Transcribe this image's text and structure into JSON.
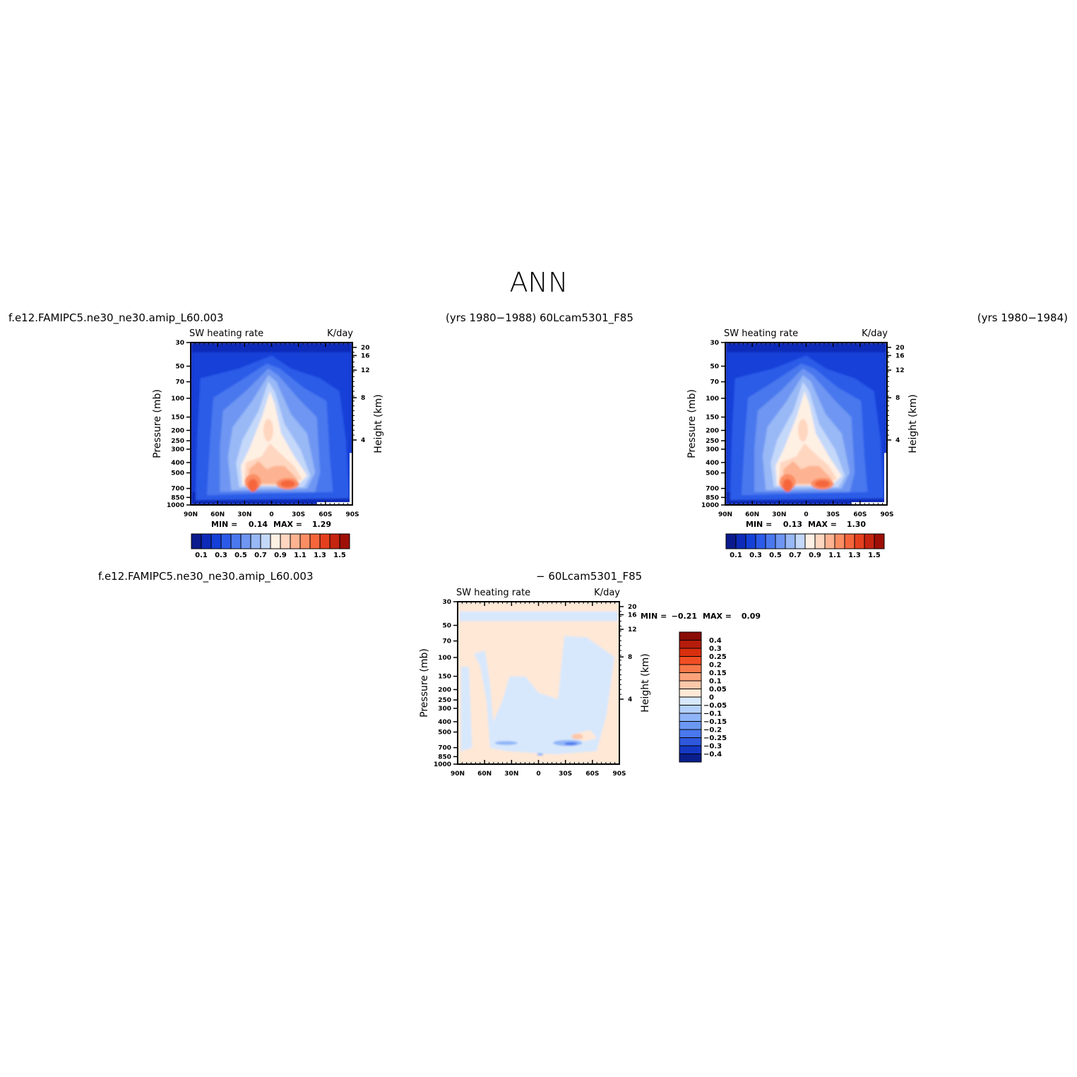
{
  "figure": {
    "title": "ANN",
    "header_left": "f.e12.FAMIPC5.ne30_ne30.amip_L60.003",
    "header_mid": "(yrs 1980−1988)  60Lcam5301_F85",
    "header_right": "(yrs 1980−1984)",
    "diff_left": "f.e12.FAMIPC5.ne30_ne30.amip_L60.003",
    "diff_right": "− 60Lcam5301_F85"
  },
  "colors": {
    "positive": [
      "#ffe8d6",
      "#ffd0b3",
      "#fdb08c",
      "#fb8a60",
      "#f5643c",
      "#e43e1c",
      "#c62310",
      "#9e0f07"
    ],
    "negative": [
      "#d5e6fc",
      "#b5d1fb",
      "#8fb5f8",
      "#6b98f3",
      "#4a78ee",
      "#2e57dc",
      "#1538c4",
      "#0a239e"
    ]
  },
  "chart_data": [
    {
      "type": "heatmap",
      "name": "control",
      "title": "SW heating rate",
      "units": "K/day",
      "ylabel": "Pressure (mb)",
      "ylabel_right": "Height (km)",
      "x_ticks": [
        "90N",
        "60N",
        "30N",
        "0",
        "30S",
        "60S",
        "90S"
      ],
      "y_ticks": [
        "30",
        "50",
        "70",
        "100",
        "150",
        "200",
        "250",
        "300",
        "400",
        "500",
        "700",
        "850",
        "1000"
      ],
      "y_ticks_right": [
        "20",
        "16",
        "12",
        "8",
        "4"
      ],
      "stats": {
        "min_label": "MIN =",
        "min": "0.14",
        "max_label": "MAX =",
        "max": "1.29"
      },
      "colorbar": {
        "orientation": "horizontal",
        "labels": [
          "0.1",
          "0.3",
          "0.5",
          "0.7",
          "0.9",
          "1.1",
          "1.3",
          "1.5"
        ],
        "colors": [
          "#0b1a8c",
          "#0d2bb8",
          "#1440d8",
          "#2b5be8",
          "#4a78ee",
          "#6e96f2",
          "#98b8f6",
          "#c4d8fa",
          "#fff0e4",
          "#ffd6bf",
          "#fdb392",
          "#fb8d63",
          "#f5663c",
          "#e5401e",
          "#c52411",
          "#9e0f07"
        ]
      }
    },
    {
      "type": "heatmap",
      "name": "test",
      "title": "SW heating rate",
      "units": "K/day",
      "ylabel": "Pressure (mb)",
      "ylabel_right": "Height (km)",
      "x_ticks": [
        "90N",
        "60N",
        "30N",
        "0",
        "30S",
        "60S",
        "90S"
      ],
      "y_ticks": [
        "30",
        "50",
        "70",
        "100",
        "150",
        "200",
        "250",
        "300",
        "400",
        "500",
        "700",
        "850",
        "1000"
      ],
      "y_ticks_right": [
        "20",
        "16",
        "12",
        "8",
        "4"
      ],
      "stats": {
        "min_label": "MIN =",
        "min": "0.13",
        "max_label": "MAX =",
        "max": "1.30"
      },
      "colorbar": {
        "orientation": "horizontal",
        "labels": [
          "0.1",
          "0.3",
          "0.5",
          "0.7",
          "0.9",
          "1.1",
          "1.3",
          "1.5"
        ],
        "colors": [
          "#0b1a8c",
          "#0d2bb8",
          "#1440d8",
          "#2b5be8",
          "#4a78ee",
          "#6e96f2",
          "#98b8f6",
          "#c4d8fa",
          "#fff0e4",
          "#ffd6bf",
          "#fdb392",
          "#fb8d63",
          "#f5663c",
          "#e5401e",
          "#c52411",
          "#9e0f07"
        ]
      }
    },
    {
      "type": "heatmap",
      "name": "difference",
      "title": "SW heating rate",
      "units": "K/day",
      "ylabel": "Pressure (mb)",
      "ylabel_right": "Height (km)",
      "x_ticks": [
        "90N",
        "60N",
        "30N",
        "0",
        "30S",
        "60S",
        "90S"
      ],
      "y_ticks": [
        "30",
        "50",
        "70",
        "100",
        "150",
        "200",
        "250",
        "300",
        "400",
        "500",
        "700",
        "850",
        "1000"
      ],
      "y_ticks_right": [
        "20",
        "16",
        "12",
        "8",
        "4"
      ],
      "stats": {
        "min_label": "MIN =",
        "min": "−0.21",
        "max_label": "MAX =",
        "max": "0.09"
      },
      "colorbar": {
        "orientation": "vertical",
        "labels": [
          "0.4",
          "0.3",
          "0.25",
          "0.2",
          "0.15",
          "0.1",
          "0.05",
          "0",
          "−0.05",
          "−0.1",
          "−0.15",
          "−0.2",
          "−0.25",
          "−0.3",
          "−0.4"
        ],
        "colors": [
          "#8a0d06",
          "#b61c0c",
          "#d9300f",
          "#f24e24",
          "#f8784a",
          "#fba27a",
          "#fdc7aa",
          "#ffe8d6",
          "#d8e8fc",
          "#b5d1fb",
          "#8fb5f8",
          "#6b98f3",
          "#4a78ee",
          "#2e57dc",
          "#1538c4",
          "#0a1e8c"
        ]
      }
    }
  ]
}
